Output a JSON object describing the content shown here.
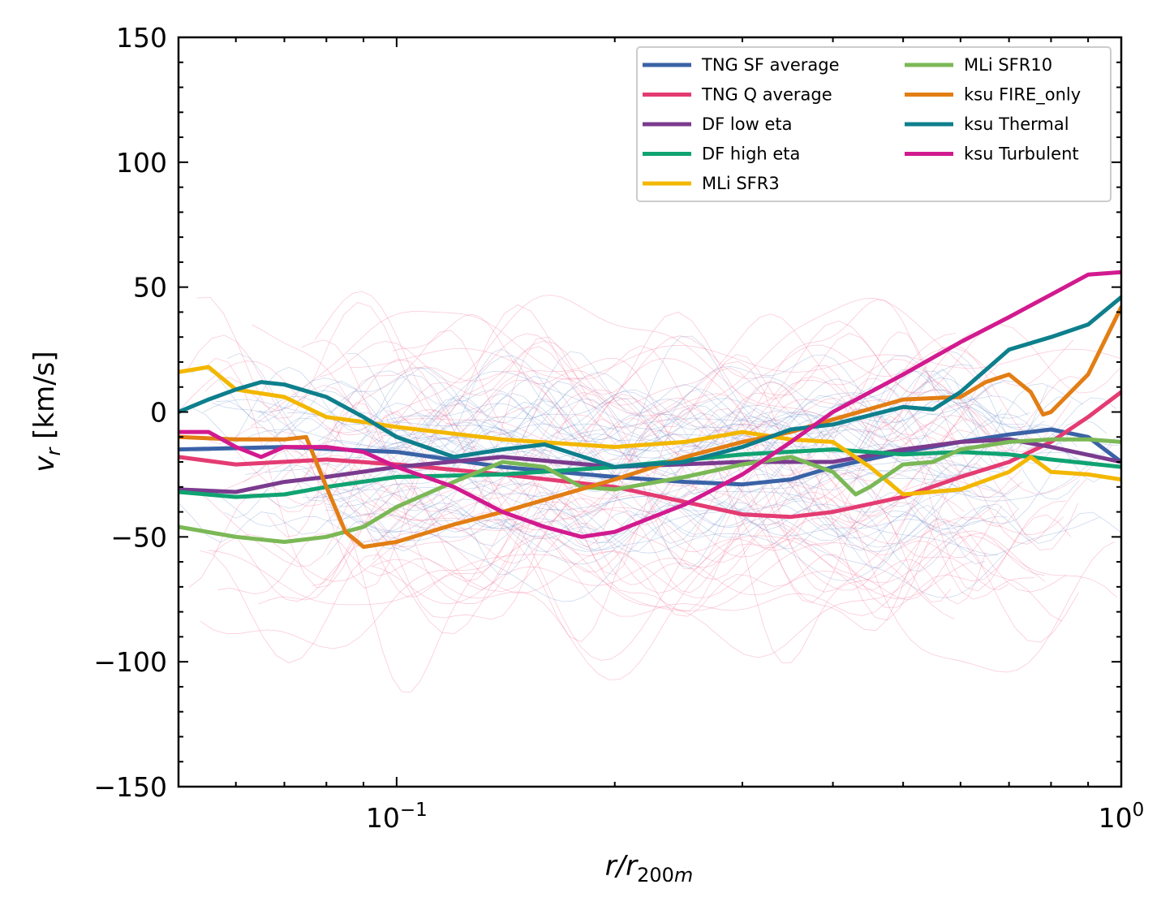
{
  "chart_data": {
    "type": "line",
    "xscale": "log",
    "xlim": [
      0.05,
      1.0
    ],
    "ylim": [
      -150,
      150
    ],
    "xlabel": "r/r_200m",
    "ylabel": "v_r [km/s]",
    "xticks": [
      {
        "value": 0.1,
        "base": "10",
        "exp": "−1"
      },
      {
        "value": 1.0,
        "base": "10",
        "exp": "0"
      }
    ],
    "yticks": [
      {
        "value": 150,
        "label": "150"
      },
      {
        "value": 100,
        "label": "100"
      },
      {
        "value": 50,
        "label": "50"
      },
      {
        "value": 0,
        "label": "0"
      },
      {
        "value": -50,
        "label": "−50"
      },
      {
        "value": -100,
        "label": "−100"
      },
      {
        "value": -150,
        "label": "−150"
      }
    ],
    "legend_position": "top-right",
    "legend_columns": 2,
    "background_colors": {
      "sf": "#6f93cc",
      "q": "#f06b93"
    },
    "series": [
      {
        "name": "TNG SF average",
        "color": "#3a62a6",
        "x": [
          0.05,
          0.07,
          0.1,
          0.14,
          0.2,
          0.25,
          0.3,
          0.35,
          0.4,
          0.5,
          0.6,
          0.7,
          0.8,
          0.9,
          1.0
        ],
        "y": [
          -15,
          -14,
          -16,
          -22,
          -26,
          -28,
          -29,
          -27,
          -22,
          -16,
          -12,
          -9,
          -7,
          -10,
          -20
        ]
      },
      {
        "name": "TNG Q average",
        "color": "#e43b72",
        "x": [
          0.05,
          0.06,
          0.08,
          0.1,
          0.14,
          0.2,
          0.25,
          0.3,
          0.35,
          0.4,
          0.5,
          0.6,
          0.7,
          0.8,
          0.9,
          1.0
        ],
        "y": [
          -18,
          -21,
          -19,
          -21,
          -25,
          -30,
          -36,
          -41,
          -42,
          -40,
          -34,
          -26,
          -20,
          -12,
          -2,
          8
        ]
      },
      {
        "name": "DF low eta",
        "color": "#7a3b8e",
        "x": [
          0.05,
          0.06,
          0.07,
          0.08,
          0.1,
          0.14,
          0.2,
          0.3,
          0.4,
          0.5,
          0.6,
          0.7,
          0.8,
          1.0
        ],
        "y": [
          -31,
          -32,
          -28,
          -26,
          -22,
          -18,
          -22,
          -20,
          -20,
          -15,
          -12,
          -11,
          -14,
          -20
        ]
      },
      {
        "name": "DF high eta",
        "color": "#10a372",
        "x": [
          0.05,
          0.06,
          0.07,
          0.08,
          0.1,
          0.14,
          0.2,
          0.3,
          0.4,
          0.5,
          0.6,
          0.7,
          0.8,
          1.0
        ],
        "y": [
          -32,
          -34,
          -33,
          -30,
          -26,
          -25,
          -22,
          -17,
          -15,
          -17,
          -16,
          -17,
          -19,
          -22
        ]
      },
      {
        "name": "MLi SFR3",
        "color": "#f3b700",
        "x": [
          0.05,
          0.055,
          0.06,
          0.07,
          0.08,
          0.09,
          0.1,
          0.14,
          0.2,
          0.25,
          0.3,
          0.35,
          0.4,
          0.45,
          0.5,
          0.6,
          0.7,
          0.75,
          0.8,
          0.9,
          1.0
        ],
        "y": [
          16,
          18,
          9,
          6,
          -2,
          -4,
          -6,
          -11,
          -14,
          -12,
          -8,
          -11,
          -12,
          -22,
          -33,
          -31,
          -24,
          -18,
          -24,
          -25,
          -27
        ]
      },
      {
        "name": "MLi SFR10",
        "color": "#7bb856",
        "x": [
          0.05,
          0.06,
          0.07,
          0.08,
          0.09,
          0.1,
          0.12,
          0.14,
          0.16,
          0.18,
          0.2,
          0.25,
          0.3,
          0.35,
          0.4,
          0.43,
          0.45,
          0.5,
          0.55,
          0.6,
          0.7,
          0.8,
          0.9,
          1.0
        ],
        "y": [
          -46,
          -50,
          -52,
          -50,
          -46,
          -38,
          -28,
          -20,
          -22,
          -30,
          -31,
          -26,
          -21,
          -18,
          -24,
          -33,
          -30,
          -21,
          -20,
          -15,
          -12,
          -11,
          -11,
          -12
        ]
      },
      {
        "name": "ksu FIRE_only",
        "color": "#e27e14",
        "x": [
          0.05,
          0.06,
          0.07,
          0.075,
          0.08,
          0.085,
          0.09,
          0.1,
          0.12,
          0.14,
          0.2,
          0.25,
          0.3,
          0.35,
          0.4,
          0.5,
          0.6,
          0.65,
          0.7,
          0.75,
          0.78,
          0.8,
          0.9,
          1.0
        ],
        "y": [
          -10,
          -11,
          -11,
          -10,
          -30,
          -48,
          -54,
          -52,
          -45,
          -40,
          -27,
          -18,
          -12,
          -8,
          -3,
          5,
          6,
          12,
          15,
          8,
          -1,
          0,
          15,
          42
        ]
      },
      {
        "name": "ksu Thermal",
        "color": "#0e7f8c",
        "x": [
          0.05,
          0.055,
          0.06,
          0.065,
          0.07,
          0.08,
          0.09,
          0.1,
          0.12,
          0.14,
          0.16,
          0.2,
          0.25,
          0.3,
          0.35,
          0.4,
          0.5,
          0.55,
          0.6,
          0.7,
          0.8,
          0.9,
          1.0
        ],
        "y": [
          0,
          5,
          9,
          12,
          11,
          6,
          -2,
          -10,
          -18,
          -15,
          -13,
          -22,
          -20,
          -14,
          -7,
          -5,
          2,
          1,
          8,
          25,
          30,
          35,
          46
        ]
      },
      {
        "name": "ksu Turbulent",
        "color": "#d21a8f",
        "x": [
          0.05,
          0.055,
          0.06,
          0.065,
          0.07,
          0.08,
          0.09,
          0.1,
          0.12,
          0.14,
          0.16,
          0.18,
          0.2,
          0.25,
          0.3,
          0.35,
          0.4,
          0.5,
          0.6,
          0.7,
          0.8,
          0.9,
          1.0
        ],
        "y": [
          -8,
          -8,
          -14,
          -18,
          -14,
          -14,
          -16,
          -22,
          -30,
          -40,
          -46,
          -50,
          -48,
          -37,
          -25,
          -12,
          0,
          15,
          28,
          38,
          47,
          55,
          56
        ]
      }
    ]
  }
}
